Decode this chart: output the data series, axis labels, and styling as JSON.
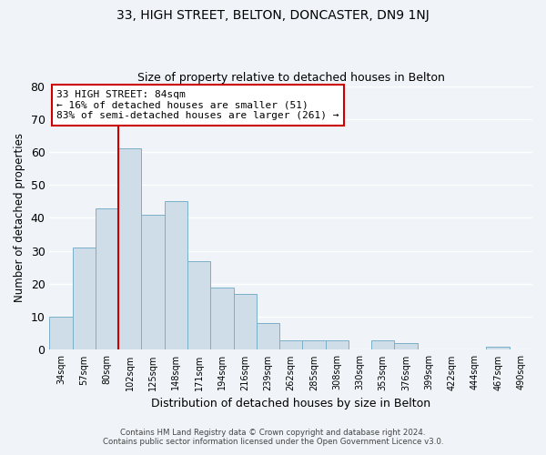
{
  "title": "33, HIGH STREET, BELTON, DONCASTER, DN9 1NJ",
  "subtitle": "Size of property relative to detached houses in Belton",
  "xlabel": "Distribution of detached houses by size in Belton",
  "ylabel": "Number of detached properties",
  "bar_color": "#cfdde8",
  "bar_edge_color": "#7aafc8",
  "categories": [
    "34sqm",
    "57sqm",
    "80sqm",
    "102sqm",
    "125sqm",
    "148sqm",
    "171sqm",
    "194sqm",
    "216sqm",
    "239sqm",
    "262sqm",
    "285sqm",
    "308sqm",
    "330sqm",
    "353sqm",
    "376sqm",
    "399sqm",
    "422sqm",
    "444sqm",
    "467sqm",
    "490sqm"
  ],
  "values": [
    10,
    31,
    43,
    61,
    41,
    45,
    27,
    19,
    17,
    8,
    3,
    3,
    3,
    0,
    3,
    2,
    0,
    0,
    0,
    1,
    0
  ],
  "ylim": [
    0,
    80
  ],
  "yticks": [
    0,
    10,
    20,
    30,
    40,
    50,
    60,
    70,
    80
  ],
  "vline_x": 2.5,
  "vline_color": "#cc0000",
  "annotation_title": "33 HIGH STREET: 84sqm",
  "annotation_line1": "← 16% of detached houses are smaller (51)",
  "annotation_line2": "83% of semi-detached houses are larger (261) →",
  "footer_line1": "Contains HM Land Registry data © Crown copyright and database right 2024.",
  "footer_line2": "Contains public sector information licensed under the Open Government Licence v3.0.",
  "background_color": "#f0f4f8",
  "grid_color": "#ffffff"
}
